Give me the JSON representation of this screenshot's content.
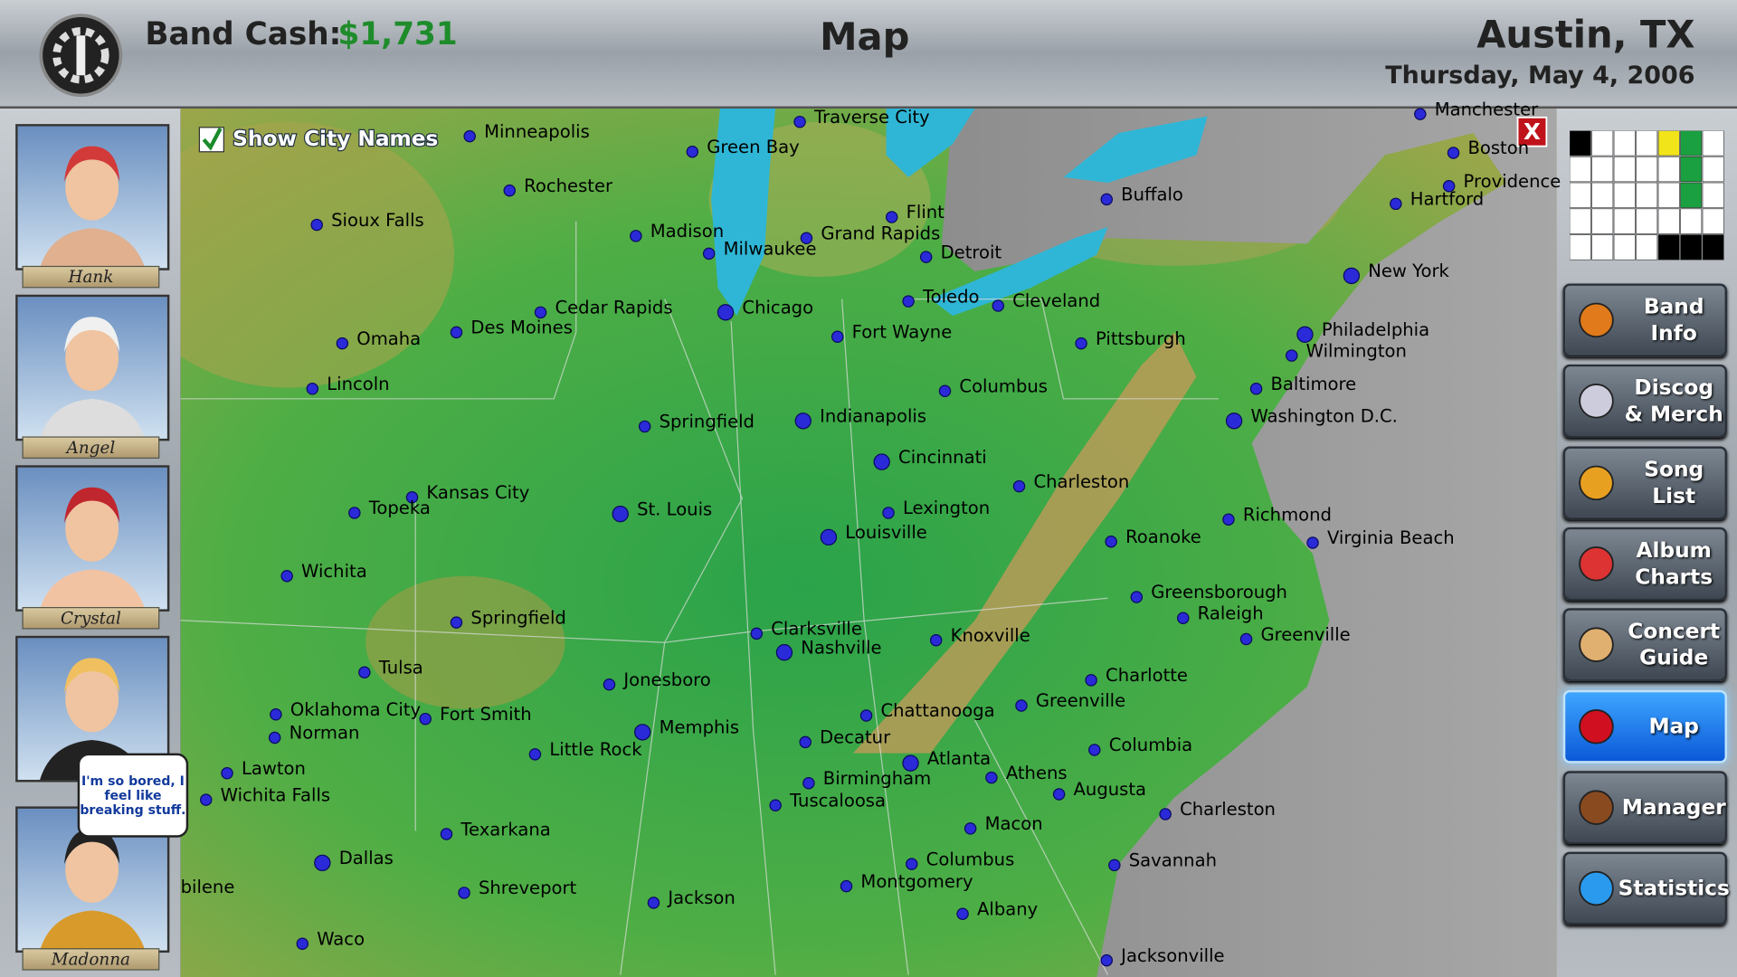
{
  "header": {
    "cash_label": "Band Cash:",
    "cash_value": "$1,731",
    "title": "Map",
    "location": "Austin, TX",
    "date": "Thursday, May 4, 2006"
  },
  "show_city_names": "Show City Names",
  "close_label": "X",
  "band": [
    "Hank",
    "Angel",
    "Crystal",
    null,
    "Madonna"
  ],
  "speech_bubble": "I'm so bored, I feel like breaking stuff.",
  "menu": [
    "Band Info",
    "Discog & Merch",
    "Song List",
    "Album Charts",
    "Concert Guide",
    "Map",
    "Manager",
    "Statistics"
  ],
  "cities": [
    "Minneapolis",
    "Traverse City",
    "Manchester",
    "Green Bay",
    "Boston",
    "Providence",
    "Rochester",
    "Flint",
    "Buffalo",
    "Hartford",
    "Sioux Falls",
    "Madison",
    "Grand Rapids",
    "Milwaukee",
    "Detroit",
    "New York",
    "Toledo",
    "Cleveland",
    "Cedar Rapids",
    "Chicago",
    "Des Moines",
    "Fort Wayne",
    "Philadelphia",
    "Omaha",
    "Pittsburgh",
    "Wilmington",
    "Lincoln",
    "Baltimore",
    "Columbus",
    "Indianapolis",
    "Washington D.C.",
    "Springfield",
    "Cincinnati",
    "Charleston",
    "Kansas City",
    "Topeka",
    "St. Louis",
    "Lexington",
    "Richmond",
    "Louisville",
    "Roanoke",
    "Virginia Beach",
    "Wichita",
    "Greensborough",
    "Raleigh",
    "Springfield",
    "Clarksville",
    "Greenville",
    "Knoxville",
    "Nashville",
    "Tulsa",
    "Charlotte",
    "Jonesboro",
    "Greenville",
    "Oklahoma City",
    "Chattanooga",
    "Fort Smith",
    "Memphis",
    "Norman",
    "Decatur",
    "Columbia",
    "Little Rock",
    "Atlanta",
    "Lawton",
    "Athens",
    "Birmingham",
    "Augusta",
    "Wichita Falls",
    "Tuscaloosa",
    "Charleston",
    "Macon",
    "Texarkana",
    "Dallas",
    "Columbus",
    "Savannah",
    "Montgomery",
    "Shreveport",
    "Jackson",
    "Albany",
    "Waco",
    "Jacksonville",
    "bilene"
  ]
}
